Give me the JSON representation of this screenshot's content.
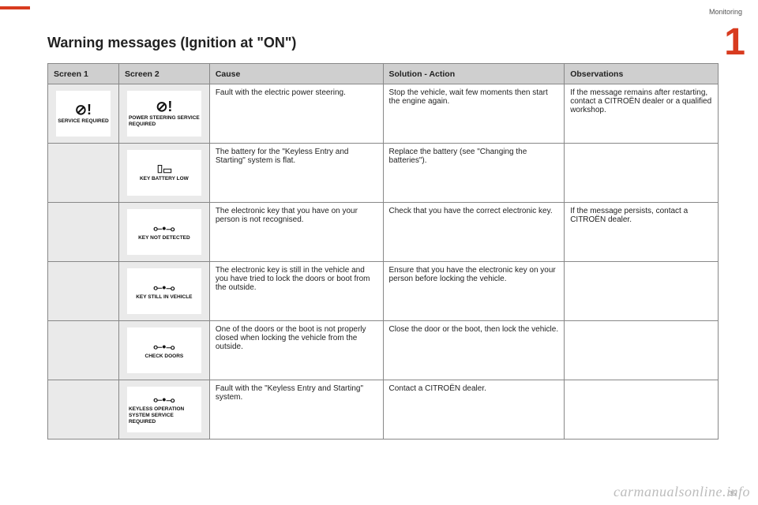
{
  "header": {
    "section": "Monitoring",
    "chapter": "1",
    "title": "Warning messages (Ignition at \"ON\")"
  },
  "columns": {
    "s1": "Screen 1",
    "s2": "Screen 2",
    "cause": "Cause",
    "solution": "Solution - Action",
    "obs": "Observations"
  },
  "rows": [
    {
      "screen1": {
        "icon": "⊘!",
        "label": "SERVICE REQUIRED"
      },
      "screen2": {
        "icon": "⊘!",
        "label": "POWER STEERING SERVICE REQUIRED"
      },
      "cause": "Fault with the electric power steering.",
      "solution": "Stop the vehicle, wait few moments then start the engine again.",
      "obs": "If the message remains after restarting, contact a CITROËN dealer or a qualified workshop."
    },
    {
      "screen1": null,
      "screen2": {
        "icon": "⌷▭",
        "label": "KEY BATTERY LOW"
      },
      "cause": "The battery for the \"Keyless Entry and Starting\" system is flat.",
      "solution": "Replace the battery (see \"Changing the batteries\").",
      "obs": ""
    },
    {
      "screen1": null,
      "screen2": {
        "icon": "⟜•⊸",
        "label": "KEY NOT DETECTED"
      },
      "cause": "The electronic key that you have on your person is not recognised.",
      "solution": "Check that you have the correct electronic key.",
      "obs": "If the message persists, contact a CITROËN dealer."
    },
    {
      "screen1": null,
      "screen2": {
        "icon": "⟜•⊸",
        "label": "KEY STILL IN VEHICLE"
      },
      "cause": "The electronic key is still in the vehicle and you have tried to lock the doors or boot from the outside.",
      "solution": "Ensure that you have the electronic key on your person before locking the vehicle.",
      "obs": ""
    },
    {
      "screen1": null,
      "screen2": {
        "icon": "⟜•⊸",
        "label": "CHECK DOORS"
      },
      "cause": "One of the doors or the boot is not properly closed when locking the vehicle from the outside.",
      "solution": "Close the door or the boot, then lock the vehicle.",
      "obs": ""
    },
    {
      "screen1": null,
      "screen2": {
        "icon": "⟜•⊸",
        "label": "KEYLESS OPERATION SYSTEM SERVICE REQUIRED"
      },
      "cause": "Fault with the \"Keyless Entry and Starting\" system.",
      "solution": "Contact a CITROËN dealer.",
      "obs": ""
    }
  ],
  "footer": {
    "watermark": "carmanualsonline.info",
    "page": "35"
  },
  "colors": {
    "accent": "#d83b1f",
    "header_bg": "#cfcfcf",
    "cell_bg": "#eaeaea"
  }
}
